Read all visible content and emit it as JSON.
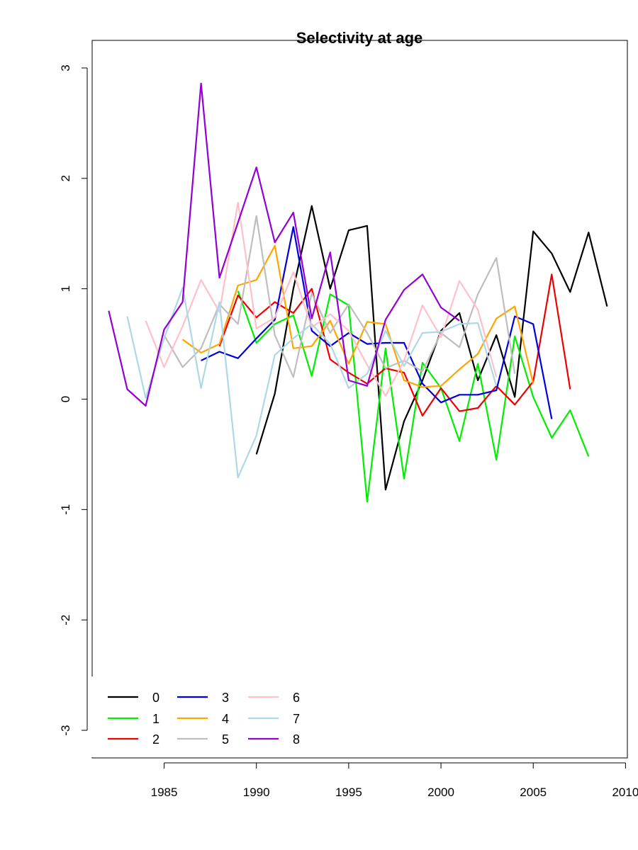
{
  "chart_data": {
    "type": "line",
    "title": "Selectivity at age",
    "xlabel": "",
    "ylabel": "",
    "xlim": [
      1981.1,
      2010.1
    ],
    "ylim": [
      -3.25,
      3.25
    ],
    "xticks": [
      1985,
      1990,
      1995,
      2000,
      2005,
      2010
    ],
    "xtick_labels": [
      "1985",
      "1990",
      "1995",
      "2000",
      "2005",
      "2010"
    ],
    "yticks": [
      -3,
      -2,
      -1,
      0,
      1,
      2,
      3
    ],
    "ytick_labels": [
      "-3",
      "-2",
      "-1",
      "0",
      "1",
      "2",
      "3"
    ],
    "grid": false,
    "legend_position": "bottom-left",
    "series": [
      {
        "name": "0",
        "color": "#000000",
        "start": 1990,
        "values": [
          -0.5,
          0.05,
          1.0,
          1.75,
          1.0,
          1.53,
          1.57,
          -0.82,
          -0.2,
          0.17,
          0.62,
          0.78,
          0.17,
          0.58,
          0.02,
          1.52,
          1.32,
          0.97,
          1.51,
          0.84
        ]
      },
      {
        "name": "1",
        "color": "#00ee00",
        "start": 1989,
        "values": [
          0.98,
          0.51,
          0.68,
          0.76,
          0.21,
          0.95,
          0.85,
          -0.93,
          0.46,
          -0.72,
          0.33,
          0.1,
          -0.38,
          0.32,
          -0.55,
          0.57,
          0.02,
          -0.35,
          -0.1,
          -0.52
        ]
      },
      {
        "name": "2",
        "color": "#ee0000",
        "start": 1988,
        "values": [
          0.48,
          0.94,
          0.74,
          0.88,
          0.78,
          1.0,
          0.36,
          0.24,
          0.14,
          0.28,
          0.24,
          -0.15,
          0.1,
          -0.11,
          -0.08,
          0.12,
          -0.05,
          0.16,
          1.13,
          0.09
        ]
      },
      {
        "name": "3",
        "color": "#0000dd",
        "start": 1987,
        "values": [
          0.35,
          0.43,
          0.37,
          0.55,
          0.72,
          1.56,
          0.62,
          0.48,
          0.6,
          0.5,
          0.51,
          0.51,
          0.14,
          -0.03,
          0.04,
          0.04,
          0.08,
          0.75,
          0.68,
          -0.18
        ]
      },
      {
        "name": "4",
        "color": "#ffa500",
        "start": 1986,
        "values": [
          0.54,
          0.42,
          0.5,
          1.03,
          1.08,
          1.39,
          0.46,
          0.48,
          0.71,
          0.32,
          0.7,
          0.68,
          0.17,
          0.11,
          0.12,
          0.27,
          0.41,
          0.73,
          0.84,
          0.14
        ]
      },
      {
        "name": "5",
        "color": "#bebebe",
        "start": 1985,
        "values": [
          0.58,
          0.29,
          0.46,
          0.86,
          0.68,
          1.66,
          0.58,
          0.2,
          0.96,
          0.6,
          0.86,
          0.6,
          0.28,
          0.35,
          0.25,
          0.6,
          0.47,
          0.95,
          1.28,
          0.23
        ]
      },
      {
        "name": "6",
        "color": "#ffc0cb",
        "start": 1984,
        "values": [
          0.71,
          0.29,
          0.66,
          1.08,
          0.79,
          1.78,
          0.64,
          0.74,
          1.15,
          0.65,
          0.77,
          0.62,
          0.31,
          0.03,
          0.35,
          0.85,
          0.56,
          1.07,
          0.81,
          0.2
        ]
      },
      {
        "name": "7",
        "color": "#add8e6",
        "start": 1983,
        "values": [
          0.75,
          0.01,
          0.55,
          1.01,
          0.1,
          0.88,
          -0.71,
          -0.33,
          0.4,
          0.55,
          0.68,
          0.5,
          0.1,
          0.23,
          0.62,
          0.3,
          0.6,
          0.61,
          0.68,
          0.69,
          0.12
        ]
      },
      {
        "name": "8",
        "color": "#9400d3",
        "start": 1982,
        "values": [
          0.8,
          0.09,
          -0.06,
          0.63,
          0.88,
          2.86,
          1.1,
          1.6,
          2.1,
          1.42,
          1.69,
          0.73,
          1.33,
          0.17,
          0.12,
          0.72,
          0.99,
          1.13,
          0.83,
          0.71
        ]
      }
    ]
  }
}
